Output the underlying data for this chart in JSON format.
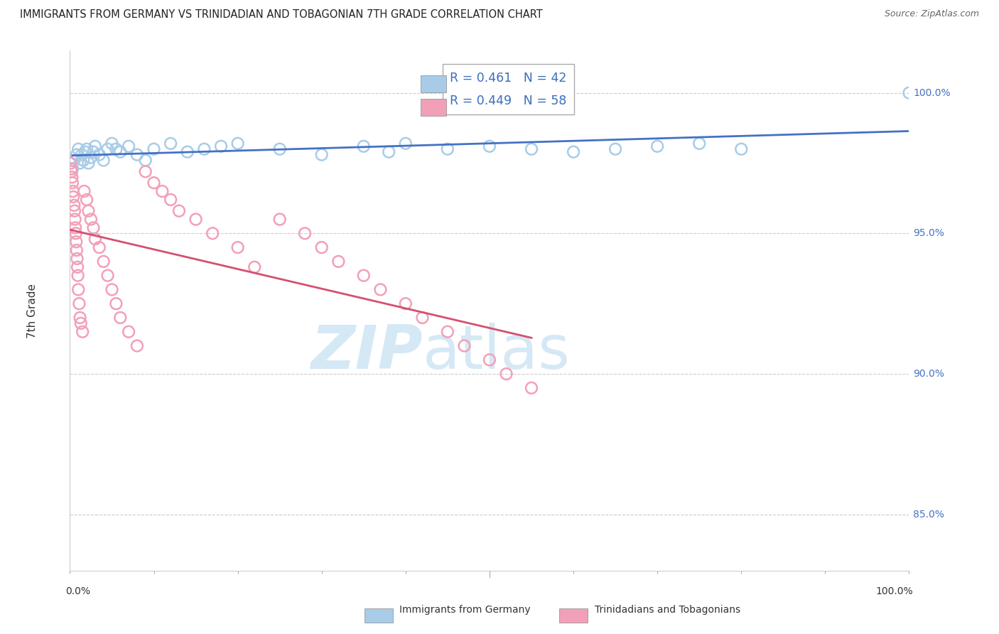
{
  "title": "IMMIGRANTS FROM GERMANY VS TRINIDADIAN AND TOBAGONIAN 7TH GRADE CORRELATION CHART",
  "source": "Source: ZipAtlas.com",
  "ylabel": "7th Grade",
  "xlim": [
    0.0,
    100.0
  ],
  "ylim": [
    83.0,
    101.5
  ],
  "yticks": [
    85.0,
    90.0,
    95.0,
    100.0
  ],
  "ytick_labels": [
    "85.0%",
    "90.0%",
    "95.0%",
    "100.0%"
  ],
  "blue_R": 0.461,
  "blue_N": 42,
  "pink_R": 0.449,
  "pink_N": 58,
  "blue_color": "#A8CCE8",
  "pink_color": "#F2A0B8",
  "blue_line_color": "#4472C4",
  "pink_line_color": "#D45070",
  "watermark_zip": "ZIP",
  "watermark_atlas": "atlas",
  "watermark_color": "#D5E8F5",
  "legend_blue_label": "Immigrants from Germany",
  "legend_pink_label": "Trinidadians and Tobagonians",
  "blue_x": [
    0.3,
    0.5,
    0.8,
    1.0,
    1.2,
    1.4,
    1.6,
    1.8,
    2.0,
    2.2,
    2.5,
    2.8,
    3.0,
    3.5,
    4.0,
    4.5,
    5.0,
    5.5,
    6.0,
    7.0,
    8.0,
    9.0,
    10.0,
    12.0,
    14.0,
    16.0,
    18.0,
    20.0,
    25.0,
    30.0,
    35.0,
    38.0,
    40.0,
    45.0,
    50.0,
    55.0,
    60.0,
    65.0,
    70.0,
    75.0,
    80.0,
    100.0
  ],
  "blue_y": [
    97.3,
    97.6,
    97.8,
    98.0,
    97.5,
    97.8,
    97.6,
    97.9,
    98.0,
    97.5,
    97.7,
    97.9,
    98.1,
    97.8,
    97.6,
    98.0,
    98.2,
    98.0,
    97.9,
    98.1,
    97.8,
    97.6,
    98.0,
    98.2,
    97.9,
    98.0,
    98.1,
    98.2,
    98.0,
    97.8,
    98.1,
    97.9,
    98.2,
    98.0,
    98.1,
    98.0,
    97.9,
    98.0,
    98.1,
    98.2,
    98.0,
    100.0
  ],
  "pink_x": [
    0.1,
    0.15,
    0.2,
    0.25,
    0.3,
    0.35,
    0.4,
    0.5,
    0.55,
    0.6,
    0.65,
    0.7,
    0.75,
    0.8,
    0.85,
    0.9,
    0.95,
    1.0,
    1.1,
    1.2,
    1.3,
    1.5,
    1.7,
    2.0,
    2.2,
    2.5,
    2.8,
    3.0,
    3.5,
    4.0,
    4.5,
    5.0,
    5.5,
    6.0,
    7.0,
    8.0,
    9.0,
    10.0,
    11.0,
    12.0,
    13.0,
    15.0,
    17.0,
    20.0,
    22.0,
    25.0,
    28.0,
    30.0,
    32.0,
    35.0,
    37.0,
    40.0,
    42.0,
    45.0,
    47.0,
    50.0,
    52.0,
    55.0
  ],
  "pink_y": [
    97.5,
    97.3,
    97.2,
    97.0,
    96.8,
    96.5,
    96.3,
    96.0,
    95.8,
    95.5,
    95.2,
    95.0,
    94.7,
    94.4,
    94.1,
    93.8,
    93.5,
    93.0,
    92.5,
    92.0,
    91.8,
    91.5,
    96.5,
    96.2,
    95.8,
    95.5,
    95.2,
    94.8,
    94.5,
    94.0,
    93.5,
    93.0,
    92.5,
    92.0,
    91.5,
    91.0,
    97.2,
    96.8,
    96.5,
    96.2,
    95.8,
    95.5,
    95.0,
    94.5,
    93.8,
    95.5,
    95.0,
    94.5,
    94.0,
    93.5,
    93.0,
    92.5,
    92.0,
    91.5,
    91.0,
    90.5,
    90.0,
    89.5
  ]
}
